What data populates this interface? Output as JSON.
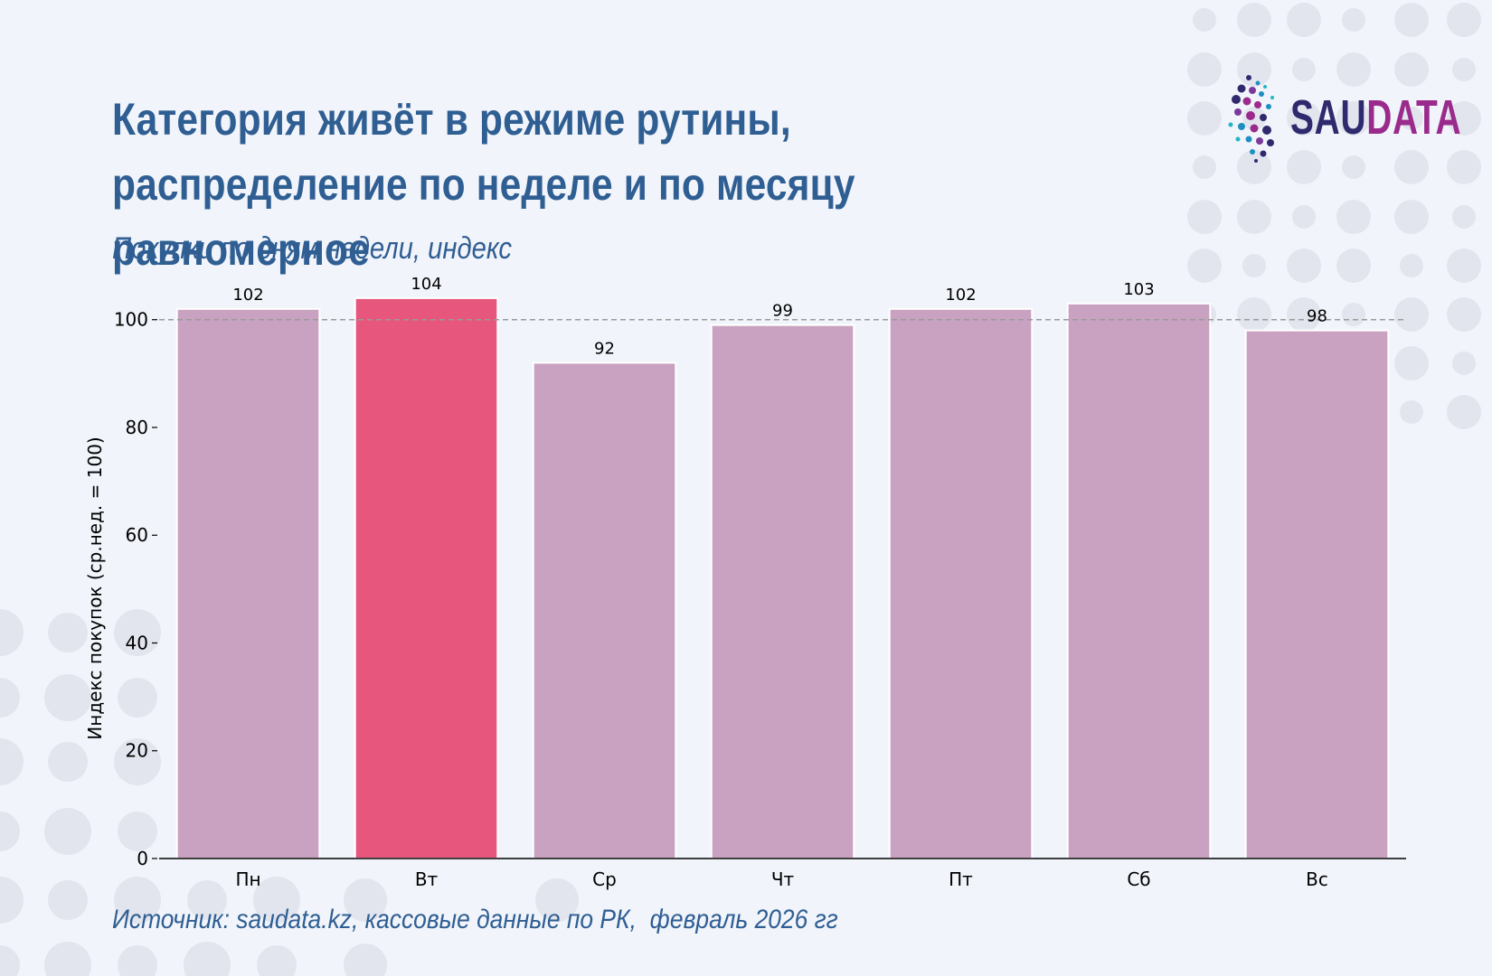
{
  "title": "Категория живёт в режиме рутины, распределение по неделе и по месяцу равномерное",
  "subtitle": "Покупки по дням недели, индекс",
  "source": "Источник: saudata.kz, кассовые данные по РК,  февраль 2026 гг",
  "logo": {
    "part1": "SAU",
    "part2": "DATA",
    "color1": "#2f2a6e",
    "color2": "#9a2a8c"
  },
  "colors": {
    "bar": "#c9a1c1",
    "highlight": "#e6567d",
    "title": "#2f5e93",
    "background": "#f1f4fa",
    "dots": "#e2e5ee"
  },
  "chart_data": {
    "type": "bar",
    "categories": [
      "Пн",
      "Вт",
      "Ср",
      "Чт",
      "Пт",
      "Сб",
      "Вс"
    ],
    "values": [
      102,
      104,
      92,
      99,
      102,
      103,
      98
    ],
    "value_labels": [
      "102",
      "104",
      "92",
      "99",
      "102",
      "103",
      "98"
    ],
    "highlight_index": 1,
    "reference_line": 100,
    "ylabel": "Индекс покупок (ср.нед. = 100)",
    "xlabel": "",
    "yticks": [
      0,
      20,
      40,
      60,
      80,
      100
    ],
    "ylim": [
      0,
      107
    ],
    "legend": "none",
    "grid": false
  }
}
